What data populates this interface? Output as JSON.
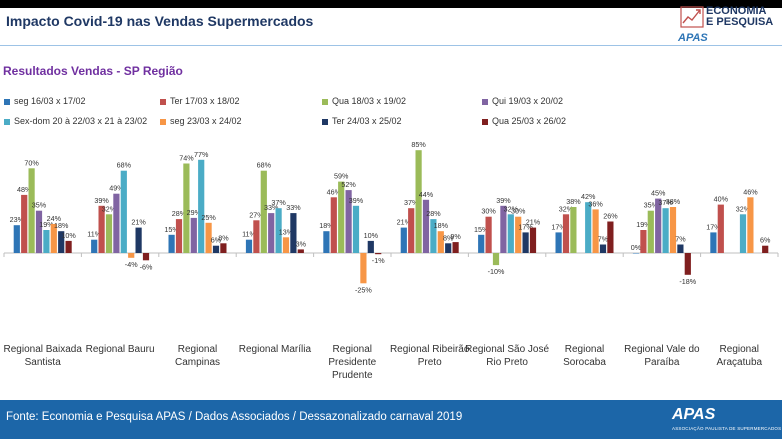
{
  "header": {
    "title": "Impacto Covid-19 nas Vendas Supermercados",
    "logo_line1": "ECONOMIA",
    "logo_line2": "E PESQUISA",
    "logo_apas": "APAS"
  },
  "subtitle": "Resultados Vendas - SP Região",
  "footer": {
    "source": "Fonte: Economia e Pesquisa APAS / Dados Associados / Dessazonalizado carnaval 2019",
    "logo": "APAS",
    "logo_sub": "ASSOCIAÇÃO PAULISTA DE SUPERMERCADOS"
  },
  "chart_data": {
    "type": "bar",
    "categories": [
      [
        "Regional Baixada",
        "Santista"
      ],
      [
        "Regional Bauru"
      ],
      [
        "Regional",
        "Campinas"
      ],
      [
        "Regional Marília"
      ],
      [
        "Regional",
        "Presidente",
        "Prudente"
      ],
      [
        "Regional Ribeirão",
        "Preto"
      ],
      [
        "Regional São José",
        "Rio Preto"
      ],
      [
        "Regional",
        "Sorocaba"
      ],
      [
        "Regional Vale do",
        "Paraíba"
      ],
      [
        "Regional",
        "Araçatuba"
      ]
    ],
    "series": [
      {
        "name": "seg 16/03 x 17/02",
        "color": "#2e75b6",
        "values": [
          23,
          11,
          15,
          11,
          18,
          21,
          15,
          17,
          0,
          17
        ]
      },
      {
        "name": "Ter 17/03 x 18/02",
        "color": "#c0504d",
        "values": [
          48,
          39,
          28,
          27,
          46,
          37,
          30,
          32,
          19,
          40
        ]
      },
      {
        "name": "Qua 18/03 x 19/02",
        "color": "#9bbb59",
        "values": [
          70,
          32,
          74,
          68,
          59,
          85,
          -10,
          38,
          35,
          null
        ]
      },
      {
        "name": "Qui 19/03 x 20/02",
        "color": "#8064a2",
        "values": [
          35,
          49,
          29,
          33,
          52,
          44,
          39,
          null,
          45,
          null
        ]
      },
      {
        "name": "Sex-dom 20 à 22/03  x 21 à 23/02",
        "color": "#4bacc6",
        "values": [
          19,
          68,
          77,
          37,
          39,
          28,
          32,
          42,
          37,
          32
        ]
      },
      {
        "name": "seg 23/03 x 24/02",
        "color": "#f79646",
        "values": [
          24,
          -4,
          25,
          13,
          -25,
          18,
          30,
          36,
          38,
          46
        ]
      },
      {
        "name": "Ter 24/03 x 25/02",
        "color": "#1f3864",
        "values": [
          18,
          21,
          6,
          33,
          10,
          8,
          17,
          7,
          7,
          null
        ]
      },
      {
        "name": "Qua 25/03 x 26/02",
        "color": "#7f1f1f",
        "values": [
          10,
          -6,
          8,
          3,
          -1,
          9,
          21,
          26,
          -18,
          6
        ]
      }
    ],
    "value_suffix": "%",
    "grid": false,
    "legend_position": "top"
  }
}
